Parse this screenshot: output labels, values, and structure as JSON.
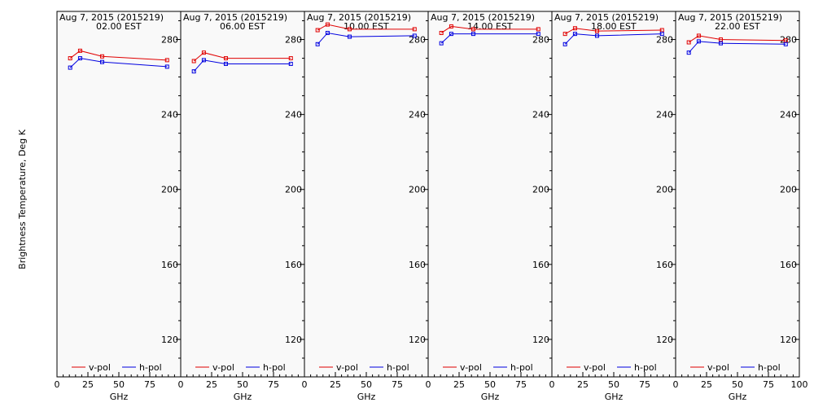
{
  "ylabel": "Brightness Temperature, Deg K",
  "xlabel": "GHz",
  "colors": {
    "v_pol": "#e00000",
    "h_pol": "#0000e0"
  },
  "chart_data": {
    "type": "line",
    "grid": false,
    "legend_placement": "bottom",
    "xlim": [
      0,
      100
    ],
    "ylim": [
      100,
      295
    ],
    "x_ticks": [
      "0",
      "25",
      "50",
      "75",
      "100"
    ],
    "y_ticks": [
      120,
      160,
      200,
      240,
      280
    ],
    "panels": [
      {
        "title_line1": "Aug  7, 2015 (2015219)",
        "title_line2": "02.00 EST",
        "series": [
          {
            "name": "v-pol",
            "x": [
              10.65,
              18.7,
              36.5,
              89.0
            ],
            "y": [
              270,
              274,
              271,
              269
            ]
          },
          {
            "name": "h-pol",
            "x": [
              10.65,
              18.7,
              36.5,
              89.0
            ],
            "y": [
              265,
              270,
              268,
              265.5
            ]
          }
        ]
      },
      {
        "title_line1": "Aug  7, 2015 (2015219)",
        "title_line2": "06.00 EST",
        "series": [
          {
            "name": "v-pol",
            "x": [
              10.65,
              18.7,
              36.5,
              89.0
            ],
            "y": [
              268.5,
              273,
              270,
              270
            ]
          },
          {
            "name": "h-pol",
            "x": [
              10.65,
              18.7,
              36.5,
              89.0
            ],
            "y": [
              263,
              269,
              267,
              267
            ]
          }
        ]
      },
      {
        "title_line1": "Aug  7, 2015 (2015219)",
        "title_line2": "10.00 EST",
        "series": [
          {
            "name": "v-pol",
            "x": [
              10.65,
              18.7,
              36.5,
              89.0
            ],
            "y": [
              285,
              288,
              285.5,
              285.5
            ]
          },
          {
            "name": "h-pol",
            "x": [
              10.65,
              18.7,
              36.5,
              89.0
            ],
            "y": [
              277.5,
              283.5,
              281.5,
              282
            ]
          }
        ]
      },
      {
        "title_line1": "Aug  7, 2015 (2015219)",
        "title_line2": "14.00 EST",
        "series": [
          {
            "name": "v-pol",
            "x": [
              10.65,
              18.7,
              36.5,
              89.0
            ],
            "y": [
              283.5,
              287,
              285.5,
              285.5
            ]
          },
          {
            "name": "h-pol",
            "x": [
              10.65,
              18.7,
              36.5,
              89.0
            ],
            "y": [
              278,
              283,
              283,
              283
            ]
          }
        ]
      },
      {
        "title_line1": "Aug  7, 2015 (2015219)",
        "title_line2": "18.00 EST",
        "series": [
          {
            "name": "v-pol",
            "x": [
              10.65,
              18.7,
              36.5,
              89.0
            ],
            "y": [
              283,
              286,
              284.5,
              285
            ]
          },
          {
            "name": "h-pol",
            "x": [
              10.65,
              18.7,
              36.5,
              89.0
            ],
            "y": [
              277.5,
              283,
              282,
              283
            ]
          }
        ]
      },
      {
        "title_line1": "Aug  7, 2015 (2015219)",
        "title_line2": "22.00 EST",
        "series": [
          {
            "name": "v-pol",
            "x": [
              10.65,
              18.7,
              36.5,
              89.0
            ],
            "y": [
              278.5,
              282,
              280,
              279.5
            ]
          },
          {
            "name": "h-pol",
            "x": [
              10.65,
              18.7,
              36.5,
              89.0
            ],
            "y": [
              273,
              279,
              278,
              277.5
            ]
          }
        ]
      }
    ]
  }
}
